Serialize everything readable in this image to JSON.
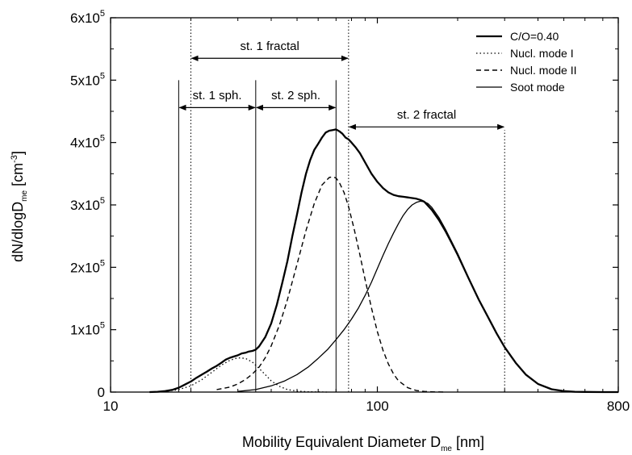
{
  "chart_data": {
    "type": "line",
    "title": "",
    "xlabel": {
      "main": "Mobility Equivalent Diameter D",
      "sub": "me",
      "unit": " [nm]"
    },
    "ylabel": {
      "main": "dN/dlogD",
      "sub": "me",
      "unit_pre": " [cm",
      "unit_sup": "-3",
      "unit_post": "]"
    },
    "xscale": "log",
    "xlim": [
      10,
      800
    ],
    "ylim": [
      0,
      600000
    ],
    "x_ticks": [
      {
        "value": 10,
        "label": "10"
      },
      {
        "value": 100,
        "label": "100"
      },
      {
        "value": 800,
        "label": "800"
      }
    ],
    "y_ticks": [
      {
        "value": 0,
        "label": "0"
      },
      {
        "value": 100000,
        "mant": "1x10",
        "exp": "5"
      },
      {
        "value": 200000,
        "mant": "2x10",
        "exp": "5"
      },
      {
        "value": 300000,
        "mant": "3x10",
        "exp": "5"
      },
      {
        "value": 400000,
        "mant": "4x10",
        "exp": "5"
      },
      {
        "value": 500000,
        "mant": "5x10",
        "exp": "5"
      },
      {
        "value": 600000,
        "mant": "6x10",
        "exp": "5"
      }
    ],
    "legend_position": "top-right",
    "grid": false,
    "series": [
      {
        "name": "C/O=0.40",
        "style": "thick-solid",
        "x": [
          14,
          15,
          16,
          17,
          18,
          19,
          20,
          21,
          22,
          23,
          24,
          25,
          26,
          27,
          28,
          29,
          30,
          31,
          32,
          33,
          34,
          35,
          36,
          38,
          40,
          42,
          44,
          46,
          48,
          50,
          52,
          54,
          56,
          58,
          60,
          62,
          64,
          66,
          68,
          70,
          72,
          74,
          76,
          78,
          80,
          83,
          86,
          90,
          95,
          100,
          105,
          110,
          115,
          120,
          125,
          130,
          135,
          140,
          145,
          150,
          160,
          170,
          180,
          190,
          200,
          220,
          240,
          260,
          280,
          300,
          330,
          360,
          400,
          450,
          500,
          550,
          600,
          700,
          800
        ],
        "y": [
          0,
          500,
          1500,
          3500,
          7000,
          12000,
          17000,
          23000,
          28000,
          33000,
          38000,
          42000,
          47000,
          52000,
          55000,
          57000,
          59000,
          62000,
          63000,
          65000,
          66000,
          68000,
          73000,
          88000,
          110000,
          140000,
          175000,
          210000,
          250000,
          285000,
          320000,
          350000,
          372000,
          388000,
          398000,
          408000,
          416000,
          419000,
          420000,
          421000,
          418000,
          414000,
          408000,
          405000,
          400000,
          392000,
          383000,
          368000,
          350000,
          337000,
          327000,
          320000,
          316000,
          314000,
          313000,
          312000,
          311000,
          310000,
          308000,
          305000,
          292000,
          276000,
          258000,
          239000,
          220000,
          182000,
          148000,
          120000,
          94000,
          72000,
          47000,
          28000,
          13000,
          4500,
          1500,
          500,
          200,
          0,
          0
        ]
      },
      {
        "name": "Nucl. mode I",
        "style": "dotted",
        "x": [
          14,
          16,
          18,
          20,
          22,
          24,
          26,
          28,
          30,
          32,
          34,
          36,
          38,
          40,
          43,
          46,
          50,
          55,
          60,
          65
        ],
        "y": [
          0,
          1000,
          4000,
          10000,
          20000,
          32000,
          43000,
          51000,
          55000,
          54000,
          48000,
          38000,
          28000,
          18000,
          9000,
          4000,
          1500,
          500,
          200,
          0
        ]
      },
      {
        "name": "Nucl. mode II",
        "style": "dashed",
        "x": [
          25,
          28,
          30,
          32,
          34,
          36,
          38,
          40,
          43,
          46,
          50,
          54,
          58,
          62,
          66,
          68,
          70,
          72,
          75,
          78,
          82,
          86,
          90,
          95,
          100,
          105,
          110,
          115,
          120,
          130,
          140,
          150,
          165,
          180
        ],
        "y": [
          4000,
          8000,
          13000,
          20000,
          29000,
          40000,
          55000,
          74000,
          108000,
          148000,
          205000,
          259000,
          302000,
          332000,
          344000,
          345000,
          343000,
          336000,
          320000,
          297000,
          260000,
          220000,
          180000,
          135000,
          97000,
          67000,
          45000,
          29000,
          18000,
          7000,
          2500,
          1000,
          200,
          0
        ]
      },
      {
        "name": "Soot mode",
        "style": "thin-solid",
        "x": [
          30,
          35,
          40,
          45,
          50,
          55,
          60,
          65,
          70,
          75,
          80,
          85,
          90,
          95,
          100,
          105,
          110,
          115,
          120,
          125,
          130,
          135,
          140,
          145,
          150,
          155,
          160,
          170,
          180,
          190,
          200,
          220,
          240,
          260,
          280,
          300,
          330,
          360,
          400,
          450,
          500,
          550,
          600,
          700,
          800
        ],
        "y": [
          1000,
          4000,
          10000,
          18000,
          28000,
          40000,
          54000,
          68000,
          84000,
          100000,
          117000,
          135000,
          155000,
          176000,
          198000,
          219000,
          238000,
          255000,
          270000,
          283000,
          293000,
          300000,
          304000,
          306000,
          305000,
          302000,
          296000,
          280000,
          261000,
          241000,
          222000,
          183000,
          149000,
          120000,
          94000,
          72000,
          47000,
          28000,
          13000,
          4500,
          1500,
          500,
          200,
          0,
          0
        ]
      }
    ],
    "vertical_lines": [
      {
        "x": 18,
        "y_top": 500000,
        "style": "solid"
      },
      {
        "x": 20,
        "y_top": 600000,
        "style": "dotted"
      },
      {
        "x": 35,
        "y_top": 500000,
        "style": "solid"
      },
      {
        "x": 70,
        "y_top": 500000,
        "style": "solid"
      },
      {
        "x": 78,
        "y_top": 600000,
        "style": "dotted"
      },
      {
        "x": 300,
        "y_top": 420000,
        "style": "dotted"
      }
    ],
    "annotations": [
      {
        "label": "st. 1 fractal",
        "x_from": 20,
        "x_to": 78,
        "arrow_y": 535000,
        "text_y": 555000
      },
      {
        "label": "st. 1 sph.",
        "x_from": 18,
        "x_to": 35,
        "arrow_y": 456000,
        "text_y": 476000
      },
      {
        "label": "st. 2 sph.",
        "x_from": 35,
        "x_to": 70,
        "arrow_y": 456000,
        "text_y": 476000
      },
      {
        "label": "st. 2 fractal",
        "x_from": 78,
        "x_to": 300,
        "arrow_y": 425000,
        "text_y": 445000
      }
    ]
  }
}
